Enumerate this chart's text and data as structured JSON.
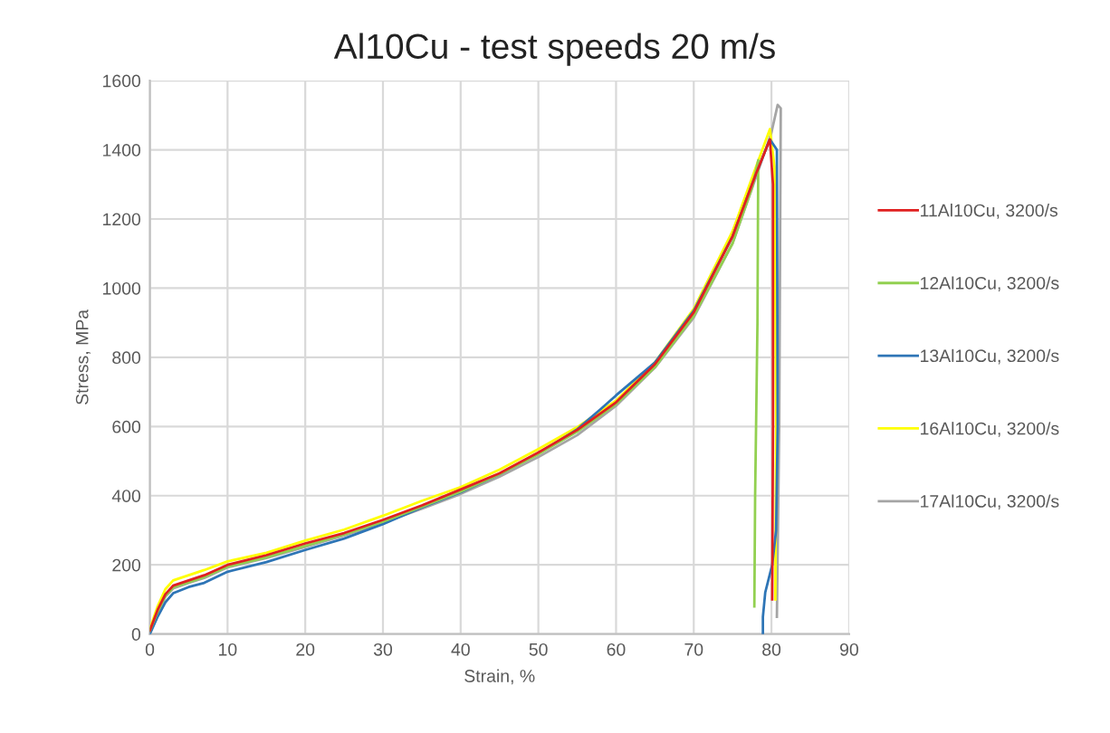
{
  "chart_data": {
    "type": "line",
    "title": "Al10Cu - test speeds 20 m/s",
    "xlabel": "Strain, %",
    "ylabel": "Stress, MPa",
    "xlim": [
      0,
      90
    ],
    "xticks": [
      0,
      10,
      20,
      30,
      40,
      50,
      60,
      70,
      80,
      90
    ],
    "ylim": [
      0,
      1600
    ],
    "yticks": [
      0,
      200,
      400,
      600,
      800,
      1000,
      1200,
      1400,
      1600
    ],
    "grid": true,
    "legend": "right",
    "marker": "none",
    "line_style": "solid",
    "series": [
      {
        "name": "11Al10Cu, 3200/s",
        "color": "#e02020",
        "x": [
          0,
          1,
          2,
          3,
          5,
          7,
          10,
          15,
          20,
          25,
          30,
          35,
          40,
          45,
          50,
          55,
          60,
          65,
          70,
          75,
          78,
          79.8,
          80.2,
          80.2,
          80.1
        ],
        "values": [
          10,
          70,
          115,
          140,
          155,
          170,
          200,
          228,
          262,
          292,
          330,
          372,
          418,
          465,
          525,
          590,
          670,
          780,
          930,
          1150,
          1330,
          1430,
          1300,
          600,
          100
        ]
      },
      {
        "name": "12Al10Cu, 3200/s",
        "color": "#92d050",
        "x": [
          0,
          1,
          2,
          3,
          5,
          7,
          10,
          15,
          20,
          25,
          30,
          35,
          40,
          45,
          50,
          55,
          60,
          65,
          70,
          75,
          77.5,
          78.3,
          78.2,
          77.9,
          77.8
        ],
        "values": [
          10,
          65,
          110,
          135,
          150,
          165,
          195,
          222,
          255,
          288,
          325,
          368,
          412,
          462,
          520,
          585,
          665,
          772,
          920,
          1130,
          1290,
          1370,
          900,
          400,
          80
        ]
      },
      {
        "name": "13Al10Cu, 3200/s",
        "color": "#2e75b6",
        "x": [
          0,
          1,
          2,
          3,
          5,
          7,
          10,
          15,
          20,
          25,
          30,
          35,
          40,
          45,
          50,
          55,
          58,
          60,
          65,
          70,
          75,
          78,
          79.8,
          80.7,
          80.8,
          80.6,
          80.1,
          79.2,
          78.9,
          78.9
        ],
        "values": [
          0,
          50,
          92,
          118,
          136,
          148,
          180,
          208,
          243,
          276,
          318,
          366,
          410,
          462,
          522,
          592,
          650,
          690,
          785,
          935,
          1150,
          1330,
          1430,
          1400,
          600,
          300,
          200,
          120,
          50,
          0
        ]
      },
      {
        "name": "16Al10Cu, 3200/s",
        "color": "#ffff00",
        "x": [
          0,
          1,
          2,
          3,
          5,
          7,
          10,
          15,
          20,
          25,
          30,
          35,
          40,
          45,
          50,
          55,
          60,
          65,
          70,
          75,
          78,
          79.8,
          80.4,
          80.6,
          80.5
        ],
        "values": [
          15,
          80,
          130,
          155,
          170,
          185,
          210,
          235,
          270,
          302,
          342,
          385,
          425,
          475,
          535,
          598,
          675,
          785,
          940,
          1165,
          1350,
          1460,
          1350,
          600,
          100
        ]
      },
      {
        "name": "17Al10Cu, 3200/s",
        "color": "#a5a5a5",
        "x": [
          0,
          1,
          2,
          3,
          5,
          7,
          10,
          15,
          20,
          25,
          30,
          35,
          40,
          45,
          50,
          55,
          60,
          65,
          70,
          75,
          78,
          80,
          80.8,
          81.2,
          81,
          80.7
        ],
        "values": [
          10,
          62,
          108,
          132,
          148,
          162,
          193,
          220,
          252,
          285,
          322,
          362,
          405,
          455,
          512,
          575,
          660,
          770,
          915,
          1130,
          1320,
          1450,
          1530,
          1520,
          600,
          50
        ]
      }
    ]
  }
}
